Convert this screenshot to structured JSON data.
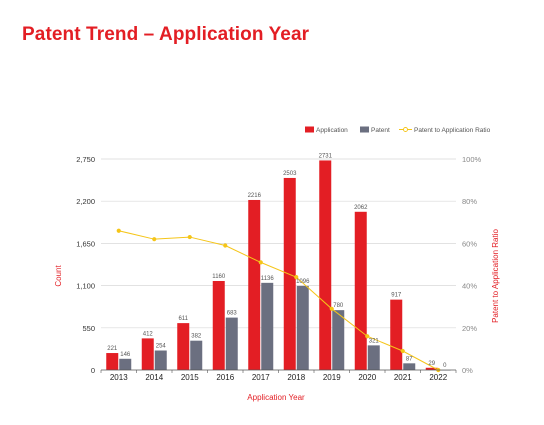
{
  "page": {
    "title": "Patent Trend – Application Year"
  },
  "colors": {
    "application": "#e31e24",
    "patent": "#6b6f80",
    "ratio": "#f5c518",
    "title": "#e31e24"
  },
  "chart_data": {
    "type": "bar",
    "title": "Patent Trend – Application Year",
    "xlabel": "Application Year",
    "ylabel": "Count",
    "y2label": "Patent to Application Ratio",
    "categories": [
      "2013",
      "2014",
      "2015",
      "2016",
      "2017",
      "2018",
      "2019",
      "2020",
      "2021",
      "2022"
    ],
    "series": [
      {
        "name": "Application",
        "type": "bar",
        "axis": "left",
        "values": [
          221,
          412,
          611,
          1160,
          2216,
          2503,
          2731,
          2062,
          917,
          29
        ]
      },
      {
        "name": "Patent",
        "type": "bar",
        "axis": "left",
        "values": [
          146,
          254,
          382,
          683,
          1136,
          1096,
          780,
          321,
          87,
          0
        ]
      },
      {
        "name": "Patent to Application Ratio",
        "type": "line",
        "axis": "right",
        "values": [
          66,
          62,
          63,
          59,
          51,
          44,
          29,
          16,
          9,
          0
        ]
      }
    ],
    "ylim": [
      0,
      2750
    ],
    "yticks": [
      "0",
      "550",
      "1,100",
      "1,650",
      "2,200",
      "2,750"
    ],
    "y2lim": [
      0,
      100
    ],
    "y2ticks": [
      "0%",
      "20%",
      "40%",
      "60%",
      "80%",
      "100%"
    ],
    "grid": true,
    "legend": "top-right"
  }
}
